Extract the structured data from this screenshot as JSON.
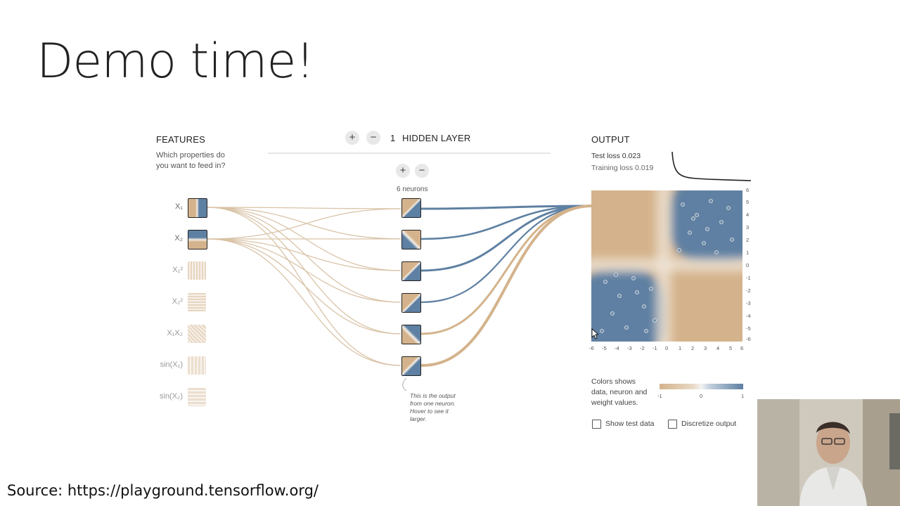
{
  "slide": {
    "title": "Demo time!",
    "source": "Source: https://playground.tensorflow.org/"
  },
  "features": {
    "header": "FEATURES",
    "question": [
      "Which properties do",
      "you want to feed in?"
    ],
    "items": [
      {
        "label": "X₁",
        "active": true
      },
      {
        "label": "X₂",
        "active": true
      },
      {
        "label": "X₁²",
        "active": false
      },
      {
        "label": "X₂²",
        "active": false
      },
      {
        "label": "X₁X₂",
        "active": false
      },
      {
        "label": "sin(X₁)",
        "active": false
      },
      {
        "label": "sin(X₂)",
        "active": false
      }
    ]
  },
  "hidden": {
    "add_layer": "+",
    "remove_layer": "−",
    "count": "1",
    "label": "HIDDEN LAYER",
    "add_neuron": "+",
    "remove_neuron": "−",
    "neurons_label": "6 neurons",
    "neuron_count": 6,
    "note": [
      "This is the output",
      "from one neuron.",
      "Hover to see it",
      "larger."
    ]
  },
  "output": {
    "header": "OUTPUT",
    "test_loss": "Test loss 0.023",
    "training_loss": "Training loss 0.019",
    "y_ticks": [
      "6",
      "5",
      "4",
      "3",
      "2",
      "1",
      "0",
      "-1",
      "-2",
      "-3",
      "-4",
      "-5",
      "-6"
    ],
    "x_ticks": [
      "-6",
      "-5",
      "-4",
      "-3",
      "-2",
      "-1",
      "0",
      "1",
      "2",
      "3",
      "4",
      "5",
      "6"
    ],
    "legend": [
      "Colors shows",
      "data, neuron and",
      "weight values."
    ],
    "legend_scale": [
      "-1",
      "0",
      "1"
    ],
    "show_test_data": "Show test data",
    "discretize_output": "Discretize output"
  },
  "colors": {
    "orange": "#d4b38c",
    "blue": "#5e80a2",
    "background": "#ffffff"
  }
}
